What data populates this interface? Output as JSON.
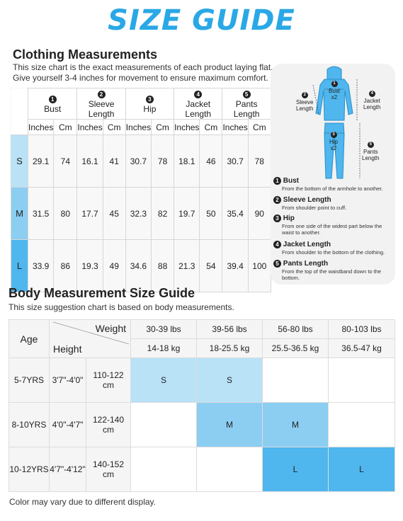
{
  "title": "SIZE GUIDE",
  "clothing": {
    "heading": "Clothing Measurements",
    "desc_line1": "This size chart is the exact measurements of each product laying flat.",
    "desc_line2": "Give yourself 3-4 inches for movement to ensure maximum comfort.",
    "columns": [
      {
        "num": "1",
        "label": "Bust"
      },
      {
        "num": "2",
        "label": "Sleeve Length"
      },
      {
        "num": "3",
        "label": "Hip"
      },
      {
        "num": "4",
        "label": "Jacket Length"
      },
      {
        "num": "5",
        "label": "Pants Length"
      }
    ],
    "unit_inches": "Inches",
    "unit_cm": "Cm",
    "rows": [
      {
        "size": "S",
        "values": [
          "29.1",
          "74",
          "16.1",
          "41",
          "30.7",
          "78",
          "18.1",
          "46",
          "30.7",
          "78"
        ],
        "color": "#b9e2f7"
      },
      {
        "size": "M",
        "values": [
          "31.5",
          "80",
          "17.7",
          "45",
          "32.3",
          "82",
          "19.7",
          "50",
          "35.4",
          "90"
        ],
        "color": "#8ccdf2"
      },
      {
        "size": "L",
        "values": [
          "33.9",
          "86",
          "19.3",
          "49",
          "34.6",
          "88",
          "21.3",
          "54",
          "39.4",
          "100"
        ],
        "color": "#4fb6ee"
      }
    ]
  },
  "figure": {
    "bust": "Bust",
    "x2a": "x2",
    "sleeve_1": "Sleeve",
    "sleeve_2": "Length",
    "jacket_1": "Jacket",
    "jacket_2": "Length",
    "hip": "Hip",
    "x2b": "x2",
    "pants_1": "Pants",
    "pants_2": "Length",
    "n1": "1",
    "n2": "2",
    "n3": "3",
    "n4": "4",
    "n5": "5"
  },
  "legend": [
    {
      "num": "1",
      "title": "Bust",
      "desc": "From the bottom of the armhole to another."
    },
    {
      "num": "2",
      "title": "Sleeve Length",
      "desc": "From shoulder point to cuff."
    },
    {
      "num": "3",
      "title": "Hip",
      "desc": "From one side of the widest part below the waist to another."
    },
    {
      "num": "4",
      "title": "Jacket Length",
      "desc": "From shoulder to the bottom of the clothing."
    },
    {
      "num": "5",
      "title": "Pants Length",
      "desc": "From the top of the waistband down to the bottom."
    }
  ],
  "body": {
    "heading": "Body Measurement Size Guide",
    "desc": "This size suggestion chart is based on body measurements.",
    "age": "Age",
    "weight": "Weight",
    "height": "Height",
    "weights_lbs": [
      "30-39 lbs",
      "39-56 lbs",
      "56-80 lbs",
      "80-103 lbs"
    ],
    "weights_kg": [
      "14-18 kg",
      "18-25.5 kg",
      "25.5-36.5 kg",
      "36.5-47 kg"
    ],
    "rows": [
      {
        "age": "5-7YRS",
        "ft": "3'7\"-4'0\"",
        "cm": "110-122 cm",
        "sizes": [
          "S",
          "S",
          "",
          ""
        ]
      },
      {
        "age": "8-10YRS",
        "ft": "4'0\"-4'7\"",
        "cm": "122-140 cm",
        "sizes": [
          "",
          "M",
          "M",
          ""
        ]
      },
      {
        "age": "10-12YRS",
        "ft": "4'7\"-4'12\"",
        "cm": "140-152 cm",
        "sizes": [
          "",
          "",
          "L",
          "L"
        ]
      }
    ]
  },
  "footer": "Color may vary due to different display.",
  "colors": {
    "accent": "#2aa8e6",
    "small": "#b9e2f7",
    "medium": "#8ccdf2",
    "large": "#4fb6ee"
  }
}
